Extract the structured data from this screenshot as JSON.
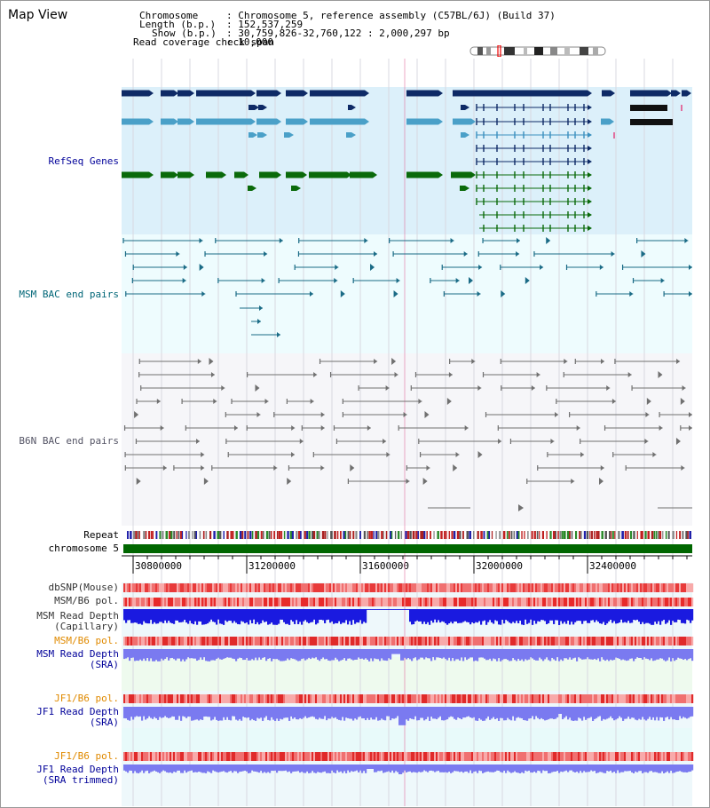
{
  "title": "Map View",
  "header": {
    "chromosome_key": "Chromosome",
    "chromosome_val": ": Chromosome 5, reference assembly (C57BL/6J) (Build 37)",
    "length_key": "Length (b.p.)",
    "length_val": ": 152,537,259",
    "show_key": "Show (b.p.)",
    "show_val": ": 30,759,826-32,760,122 : 2,000,297 bp",
    "coverage_key": "Read coverage check span",
    "coverage_val": ": 10,000"
  },
  "tracks": {
    "refseq": "RefSeq Genes",
    "msm_bac": "MSM BAC end pairs",
    "b6n_bac": "B6N BAC end pairs",
    "repeat": "Repeat",
    "chromosome": "chromosome 5",
    "dbsnp": "dbSNP(Mouse)",
    "msm_b6_pol_1": "MSM/B6 pol.",
    "msm_depth_cap_1": "MSM Read Depth",
    "msm_depth_cap_2": "(Capillary)",
    "msm_b6_pol_2": "MSM/B6 pol.",
    "msm_depth_sra_1": "MSM Read Depth",
    "msm_depth_sra_2": "(SRA)",
    "jf1_b6_pol_1": "JF1/B6 pol.",
    "jf1_depth_sra_1": "JF1 Read Depth",
    "jf1_depth_sra_2": "(SRA)",
    "jf1_b6_pol_2": "JF1/B6 pol.",
    "jf1_depth_trim_1": "JF1 Read Depth",
    "jf1_depth_trim_2": "(SRA trimmed)"
  },
  "axis": {
    "ticks": [
      "30800000",
      "31200000",
      "31600000",
      "32000000",
      "32400000"
    ]
  },
  "colors": {
    "refseq_bg": "#dcf0fa",
    "msm_bg": "#eefcfe",
    "b6n_bg": "#f6f6f9",
    "gene_dark": "#0e2a66",
    "gene_mid": "#3a8fbf",
    "gene_light": "#4aa0c8",
    "gene_green": "#0a6a0a",
    "msm_bac": "#1a6b86",
    "b6n_bac": "#707070",
    "chromosome": "#006600",
    "depth_capillary": "#1a1ae0",
    "depth_sra": "#7a7af0",
    "pol_red": "#e03030",
    "highlight": "#e070a0",
    "label_blue": "#000099",
    "label_teal": "#006677",
    "label_grey": "#555566",
    "label_orange": "#e08a00"
  }
}
